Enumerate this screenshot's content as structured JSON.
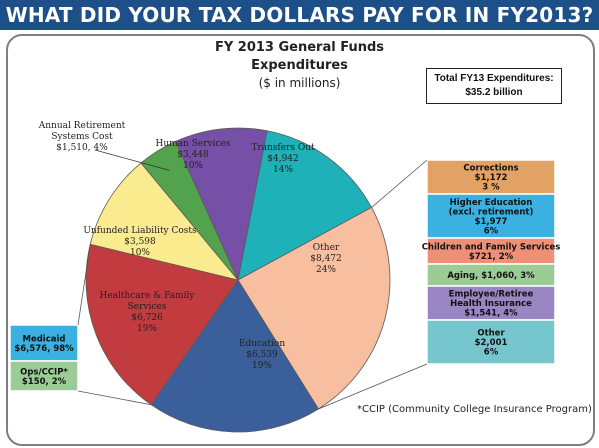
{
  "banner": {
    "title": "WHAT DID YOUR TAX DOLLARS PAY FOR IN FY2013?"
  },
  "chart_data": {
    "type": "pie",
    "title": "FY 2013 General Funds",
    "title_line2": "Expenditures",
    "subtitle": "($ in millions)",
    "total_box": {
      "line1": "Total FY13 Expenditures:",
      "line2": "$35.2 billion"
    },
    "footnote": "*CCIP (Community College Insurance Program)",
    "slices": [
      {
        "label": "Transfers Out",
        "value": 4942,
        "value_text": "$4,942",
        "pct": "14%",
        "color": "#1fb1b8"
      },
      {
        "label": "Other",
        "value": 8472,
        "value_text": "$8,472",
        "pct": "24%",
        "color": "#f8bea0"
      },
      {
        "label": "Education",
        "value": 6539,
        "value_text": "$6,539",
        "pct": "19%",
        "color": "#3b5f9b"
      },
      {
        "label": "Healthcare & Family Services",
        "value": 6726,
        "value_text": "$6,726",
        "pct": "19%",
        "color": "#c23b3f"
      },
      {
        "label": "Unfunded Liability Costs",
        "value": 3598,
        "value_text": "$3,598",
        "pct": "10%",
        "color": "#fbeb8f"
      },
      {
        "label": "Annual Retirement Systems Cost",
        "value": 1510,
        "value_text": "$1,510",
        "pct": "4%",
        "color": "#53a24d"
      },
      {
        "label": "Human Services",
        "value": 3448,
        "value_text": "$3,448",
        "pct": "10%",
        "color": "#7550a6"
      }
    ],
    "other_breakdown": [
      {
        "lines": [
          "Corrections",
          "$1,172",
          "3 %"
        ],
        "value": 1172,
        "color": "#e2a263"
      },
      {
        "lines": [
          "Higher Education",
          "(excl. retirement)",
          "$1,977",
          "6%"
        ],
        "value": 1977,
        "color": "#3bb1e1"
      },
      {
        "lines": [
          "Children and Family Services",
          "$721, 2%"
        ],
        "value": 721,
        "color": "#ef8f76"
      },
      {
        "lines": [
          "Aging, $1,060, 3%"
        ],
        "value": 1060,
        "color": "#9ccc95"
      },
      {
        "lines": [
          "Employee/Retiree",
          "Health Insurance",
          "$1,541, 4%"
        ],
        "value": 1541,
        "color": "#9a86c3"
      },
      {
        "lines": [
          "Other",
          "$2,001",
          "6%"
        ],
        "value": 2001,
        "color": "#76c6ce"
      }
    ],
    "healthcare_breakdown": [
      {
        "lines": [
          "Medicaid",
          "$6,576, 98%"
        ],
        "value": 6576,
        "color": "#3bb1e1"
      },
      {
        "lines": [
          "Ops/CCIP*",
          "$150, 2%"
        ],
        "value": 150,
        "color": "#9ccc95"
      }
    ]
  }
}
